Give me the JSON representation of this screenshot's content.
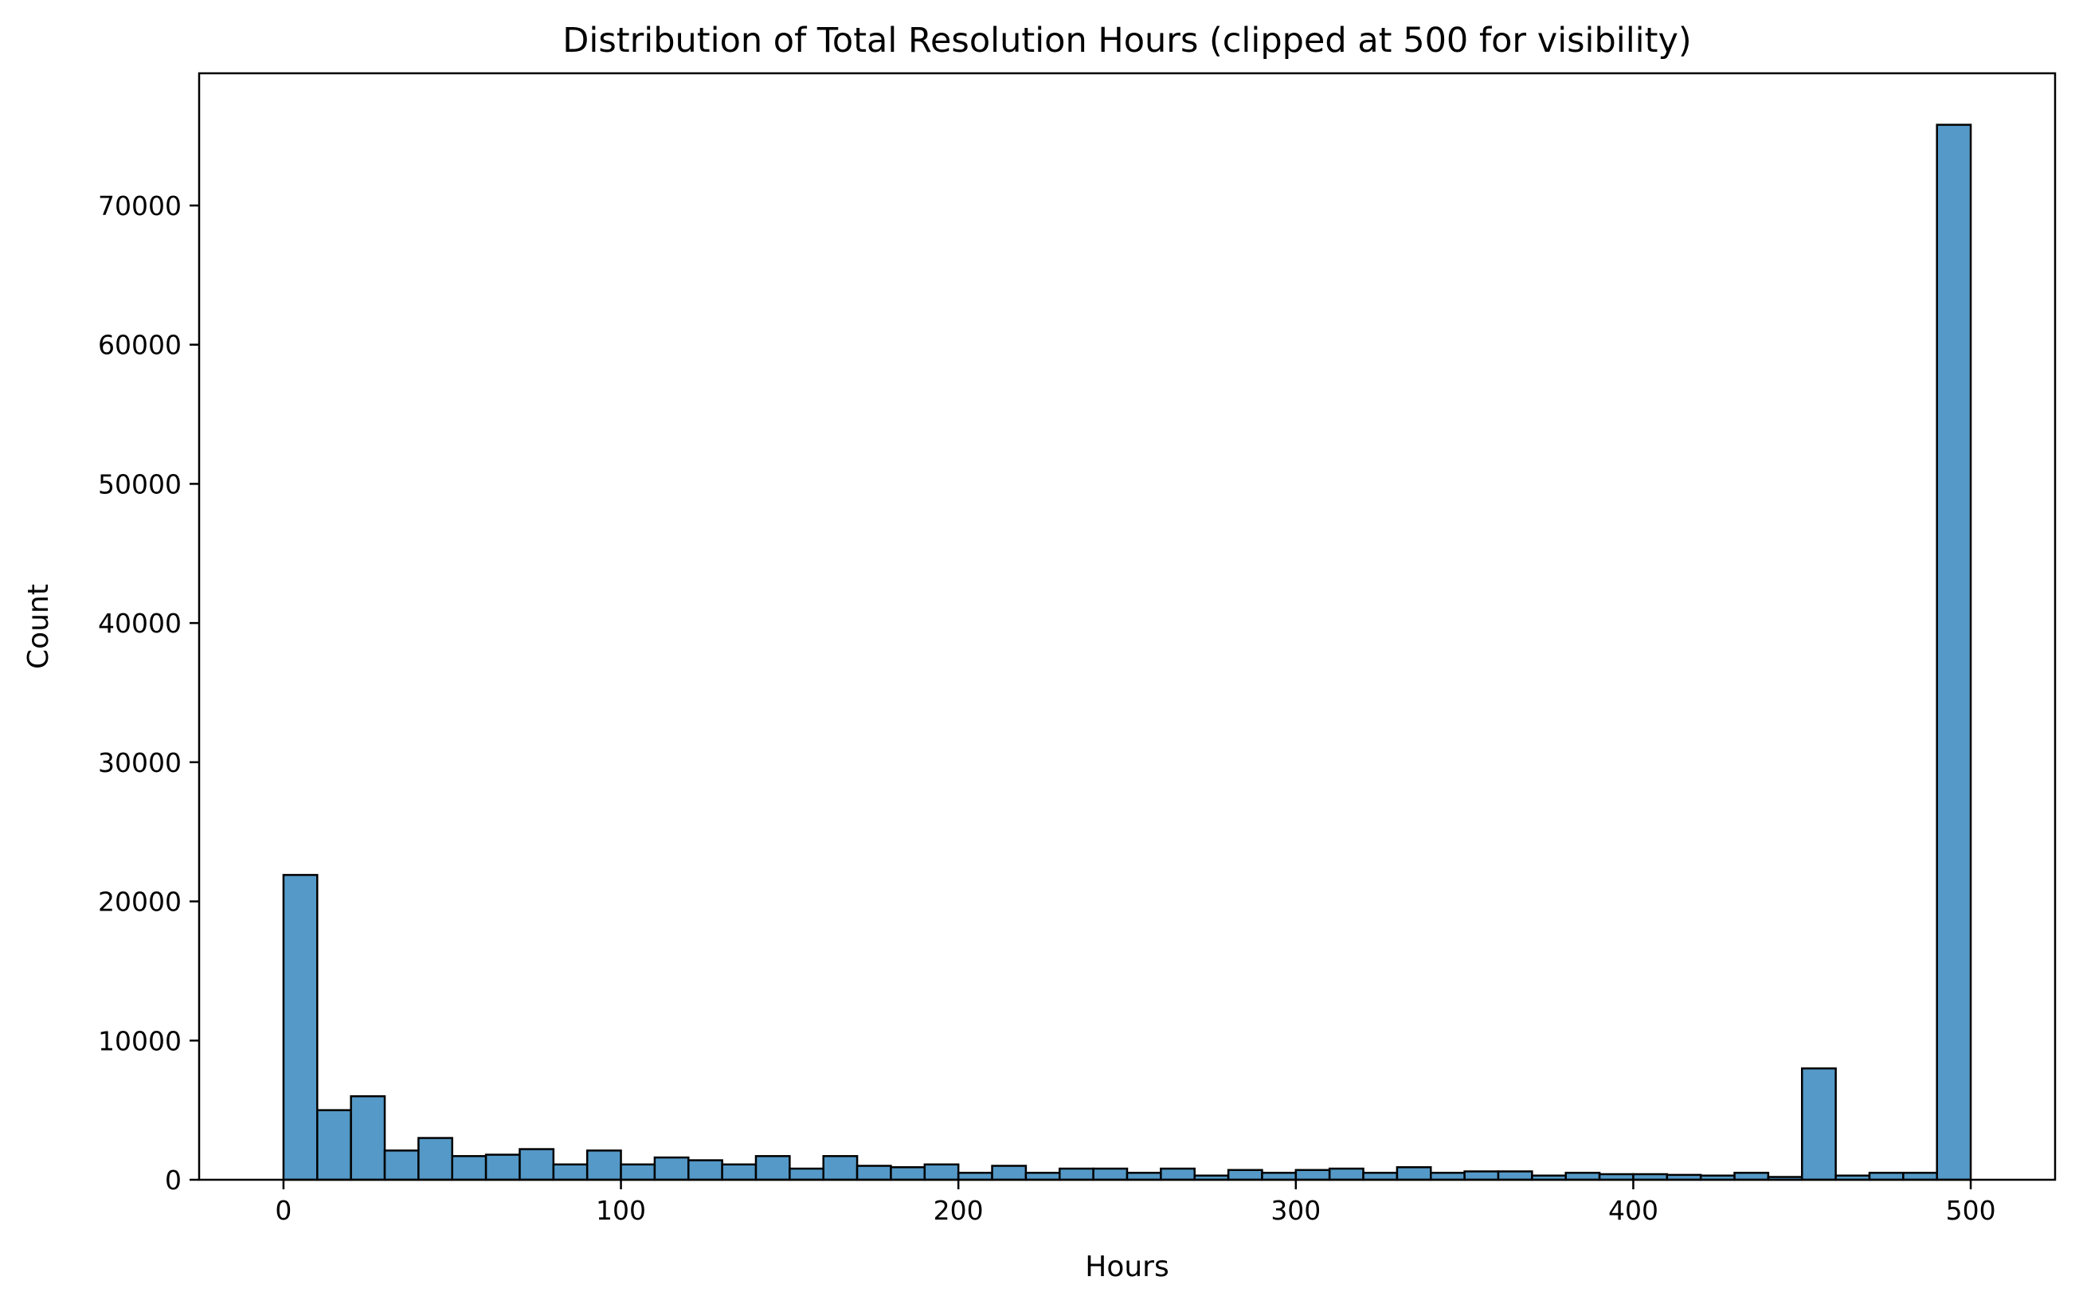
{
  "chart_data": {
    "type": "bar",
    "title": "Distribution of Total Resolution Hours (clipped at 500 for visibility)",
    "xlabel": "Hours",
    "ylabel": "Count",
    "xlim": [
      -25,
      525
    ],
    "ylim": [
      0,
      79500
    ],
    "xticks": [
      0,
      100,
      200,
      300,
      400,
      500
    ],
    "xtick_labels": [
      "0",
      "100",
      "200",
      "300",
      "400",
      "500"
    ],
    "yticks": [
      0,
      10000,
      20000,
      30000,
      40000,
      50000,
      60000,
      70000
    ],
    "ytick_labels": [
      "0",
      "10000",
      "20000",
      "30000",
      "40000",
      "50000",
      "60000",
      "70000"
    ],
    "grid": false,
    "bin_width": 10,
    "bin_edges": [
      0,
      10,
      20,
      30,
      40,
      50,
      60,
      70,
      80,
      90,
      100,
      110,
      120,
      130,
      140,
      150,
      160,
      170,
      180,
      190,
      200,
      210,
      220,
      230,
      240,
      250,
      260,
      270,
      280,
      290,
      300,
      310,
      320,
      330,
      340,
      350,
      360,
      370,
      380,
      390,
      400,
      410,
      420,
      430,
      440,
      450,
      460,
      470,
      480,
      490,
      500
    ],
    "values": [
      21900,
      5000,
      6000,
      2100,
      3000,
      1700,
      1800,
      2200,
      1100,
      2100,
      1100,
      1600,
      1400,
      1100,
      1700,
      800,
      1700,
      1000,
      900,
      1100,
      500,
      1000,
      500,
      800,
      800,
      500,
      800,
      300,
      700,
      500,
      700,
      800,
      500,
      900,
      500,
      600,
      600,
      300,
      500,
      400,
      400,
      350,
      300,
      500,
      200,
      8000,
      300,
      500,
      500,
      75800
    ],
    "bar_color": "#5499c7",
    "edge_color": "#000000"
  }
}
